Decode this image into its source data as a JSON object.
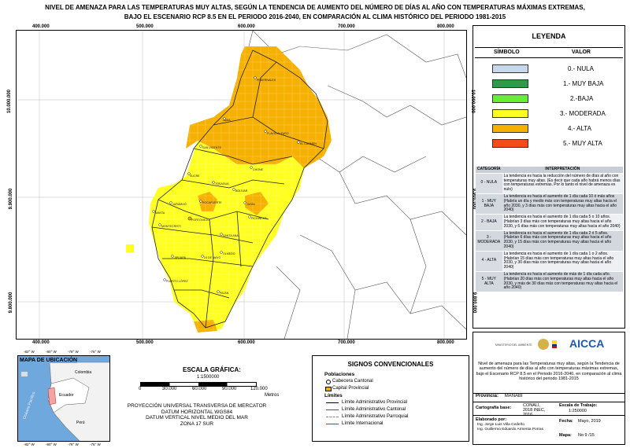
{
  "title": {
    "line1": "NIVEL DE AMENAZA PARA LAS TEMPERATURAS MUY ALTAS, SEGÚN LA TENDENCIA DE AUMENTO DEL NÚMERO DE DÍAS AL AÑO CON TEMPERATURAS MÁXIMAS EXTREMAS,",
    "line2": "BAJO EL ESCENARIO RCP 8.5 EN EL PERIODO 2016-2040, EN COMPARACIÓN AL CLIMA HISTÓRICO DEL PERIODO 1981-2015"
  },
  "map": {
    "x_ticks": [
      "400.000",
      "500.000",
      "600.000",
      "700.000",
      "800.000"
    ],
    "y_ticks": [
      "10.000.000",
      "9.900.000",
      "9.800.000"
    ],
    "places": [
      "PEDERNALES",
      "JAMA",
      "FLAVIO ALFARO",
      "EL CARMEN",
      "SAN VICENTE",
      "CHONE",
      "SUCRE",
      "TOSAGUA",
      "BOLÍVAR",
      "JUNÍN",
      "MANTA",
      "PORTOVIEJO",
      "JARAMIJÓ",
      "MONTECRISTI",
      "ROCAFUERTE",
      "PICHINCHA",
      "SANTA ANA",
      "OLMEDO",
      "JIPIJAPA",
      "24 DE MAYO",
      "PUERTO LÓPEZ",
      "PAJÁN"
    ]
  },
  "legend": {
    "heading": "LEYENDA",
    "col_symbol": "SÍMBOLO",
    "col_value": "VALOR",
    "items": [
      {
        "label": "0.- NULA",
        "color": "#c6d9ec"
      },
      {
        "label": "1.- MUY BAJA",
        "color": "#2e9a4a"
      },
      {
        "label": "2.-BAJA",
        "color": "#66ee33"
      },
      {
        "label": "3.- MODERADA",
        "color": "#ffff22"
      },
      {
        "label": "4.- ALTA",
        "color": "#f5b000"
      },
      {
        "label": "5.- MUY ALTA",
        "color": "#f74a1c"
      }
    ]
  },
  "interp": {
    "col_cat": "CATEGORÍA",
    "col_int": "INTERPRETACIÓN",
    "rows": [
      {
        "cat": "0 - NULA",
        "text": "La tendencia es hacia la reducción del número de días al año con temperaturas muy altas. (Es decir que cada año habrá menos días con temperaturas extremas. Por lo tanto el nivel de amenaza es nulo)"
      },
      {
        "cat": "1 - MUY BAJA",
        "text": "La tendencia es hacia el aumento de 1 día cada 10 ó más años (Habría un día y medio más con temperaturas muy altas hacia el año 2030, y 3 días más con temperaturas muy altas hacia el año 2040)"
      },
      {
        "cat": "2 - BAJA",
        "text": "La tendencia es hacia el aumento de 1 día cada 5 o 10 años. (Habrían 3 días más con temperaturas muy altas hacia el año 2030, y 6 días más con temperaturas muy altas hacia el año 2040)"
      },
      {
        "cat": "3 - MODERADA",
        "text": "La tendencia es hacia el aumento de 1 día cada 2 ó 5 años. (Habrían 6 días más con temperaturas muy altas hacia el año 2030, y 15 días más con temperaturas muy altas hacia el año 2040)"
      },
      {
        "cat": "4 - ALTA",
        "text": "La tendencia es hacia el aumento de 1 día cada 1 o 2 años. (Habrían 15 días más con temperaturas muy altas hacia el año 2030, y 30 días más con temperaturas muy altas hacia el año 2040)"
      },
      {
        "cat": "5 - MUY ALTA",
        "text": "La tendencia es hacia el aumento de más de 1 día cada año. (Habrían 20 días más con temperaturas muy altas hacia el año 2030, y más de 30 días más con temperaturas muy altas hacia el año 2040)"
      }
    ]
  },
  "inset": {
    "title": "MAPA DE UBICACIÓN",
    "labels": [
      "Colombia",
      "Ecuador",
      "Perú",
      "Océano Pacífico"
    ],
    "ticks_top": [
      "-82° W",
      "-80° W",
      "-78° W",
      "-76° W"
    ],
    "ticks_bottom": [
      "-82° W",
      "-80° W",
      "-78° W",
      "-76° W"
    ]
  },
  "scale": {
    "heading": "ESCALA GRÁFICA:",
    "ratio": "1:1500000",
    "ticks": [
      "0",
      "30.000",
      "60.000",
      "90.000",
      "120.000"
    ],
    "unit": "Metros",
    "proj1": "PROYECCIÓN UNIVERSAL TRANSVERSA DE MERCATOR",
    "proj2": "DATUM HORIZONTAL WGS84",
    "proj3": "DATUM VERTICAL NIVEL MEDIO DEL MAR",
    "proj4": "ZONA 17 SUR"
  },
  "signs": {
    "heading": "SIGNOS CONVENCIONALES",
    "pop_heading": "Poblaciones",
    "pop1": "Cabecera Cantonal",
    "pop2": "Capital Provincial",
    "lim_heading": "Límites",
    "lim1": "Límite Administrativo Provincial",
    "lim2": "Límite Administrativo Cantonal",
    "lim3": "Límite Administrativo Parroquial",
    "lim4": "Límite Internacional"
  },
  "info": {
    "logos": [
      "MINISTERIO DEL AMBIENTE",
      "AICCA"
    ],
    "description": "Nivel de amenaza para las Temperaturas muy altas, según la Tendencia de aumento del número de días al año con temperaturas máximas extremas, bajo el Escenario RCP 8.5 en el Periodo 2016-2040, en comparación al clima histórico del periodo 1981-2015",
    "province_label": "Provincia:",
    "province": "MANABI",
    "base_label": "Cartografía base:",
    "base": "CONALI, 2018 INEC, 2016",
    "scale_label": "Escala de Trabajo:",
    "scale": "1:250000",
    "author_label": "Elaborado por:",
    "author1": "Ing. Jorge Luis Villa Cedeño",
    "author2": "Ing. Guillermo Eduardo Armenta Porras",
    "date_label": "Fecha:",
    "date": "Mayo, 2019",
    "map_label": "Mapa:",
    "map_no": "No 9 /15"
  }
}
